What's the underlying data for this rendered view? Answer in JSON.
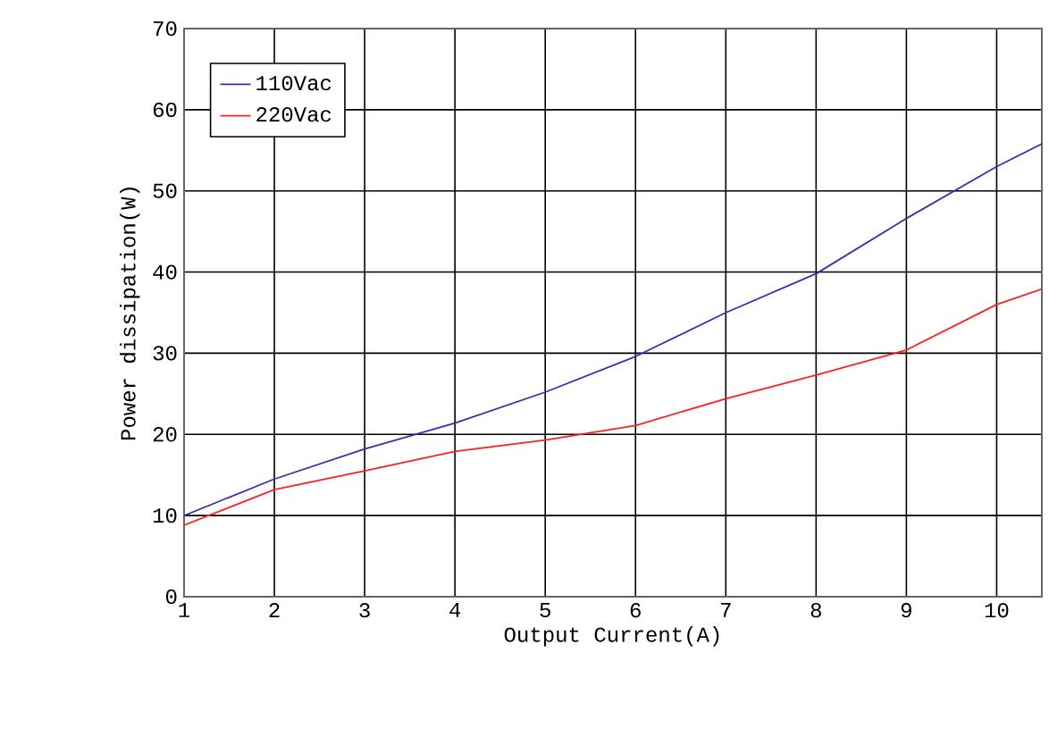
{
  "chart_data": {
    "type": "line",
    "xlabel": "Output Current(A)",
    "ylabel": "Power dissipation(W)",
    "x": [
      1,
      2,
      3,
      4,
      5,
      6,
      7,
      8,
      9,
      10,
      10.5
    ],
    "series": [
      {
        "name": "110Vac",
        "color": "#3333aa",
        "values": [
          10.0,
          14.5,
          18.2,
          21.4,
          25.2,
          29.6,
          35.0,
          39.8,
          46.6,
          53.0,
          55.8
        ]
      },
      {
        "name": "220Vac",
        "color": "#ff2020",
        "values": [
          8.8,
          13.2,
          15.5,
          17.9,
          19.3,
          21.1,
          24.4,
          27.3,
          30.4,
          36.0,
          37.9
        ]
      }
    ],
    "xlim": [
      1,
      10.5
    ],
    "ylim": [
      0,
      70
    ],
    "xticks": [
      1,
      2,
      3,
      4,
      5,
      6,
      7,
      8,
      9,
      10
    ],
    "yticks": [
      0,
      10,
      20,
      30,
      40,
      50,
      60,
      70
    ],
    "grid": true,
    "legend": "top left",
    "marker": "none",
    "line_style": "solid"
  }
}
